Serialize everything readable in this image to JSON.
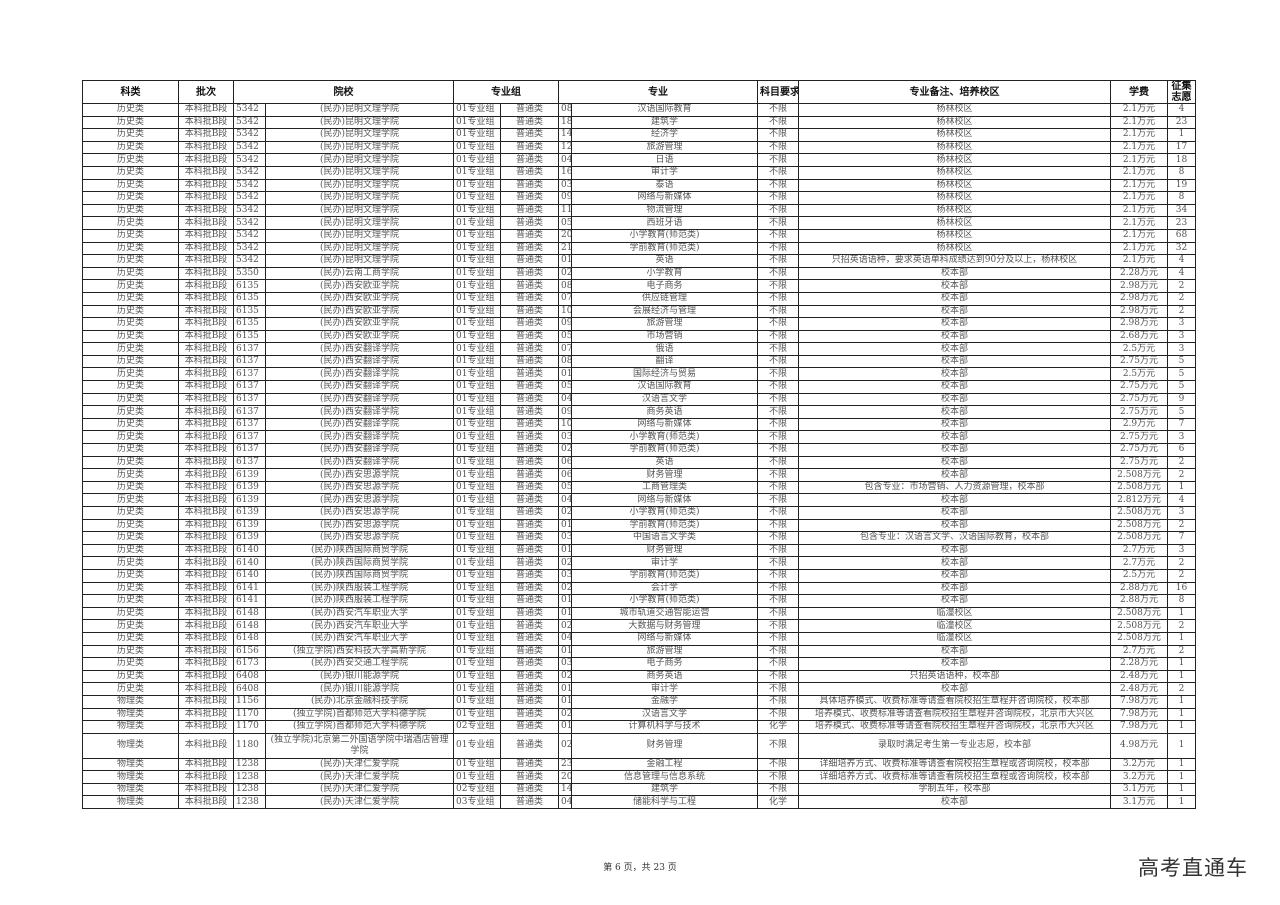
{
  "header": {
    "subject": "科类",
    "batch": "批次",
    "school": "院校",
    "group": "专业组",
    "major": "专业",
    "requirement": "科目要求",
    "note": "专业备注、培养校区",
    "fee": "学费",
    "volunteers": "征集志愿"
  },
  "rows": [
    [
      "历史类",
      "本科批B段",
      "5342",
      "(民办)昆明文理学院",
      "01专业组",
      "普通类",
      "08",
      "汉语国际教育",
      "不限",
      "杨林校区",
      "2.1万元",
      "4"
    ],
    [
      "历史类",
      "本科批B段",
      "5342",
      "(民办)昆明文理学院",
      "01专业组",
      "普通类",
      "18",
      "建筑学",
      "不限",
      "杨林校区",
      "2.1万元",
      "23"
    ],
    [
      "历史类",
      "本科批B段",
      "5342",
      "(民办)昆明文理学院",
      "01专业组",
      "普通类",
      "14",
      "经济学",
      "不限",
      "杨林校区",
      "2.1万元",
      "1"
    ],
    [
      "历史类",
      "本科批B段",
      "5342",
      "(民办)昆明文理学院",
      "01专业组",
      "普通类",
      "12",
      "旅游管理",
      "不限",
      "杨林校区",
      "2.1万元",
      "17"
    ],
    [
      "历史类",
      "本科批B段",
      "5342",
      "(民办)昆明文理学院",
      "01专业组",
      "普通类",
      "04",
      "日语",
      "不限",
      "杨林校区",
      "2.1万元",
      "18"
    ],
    [
      "历史类",
      "本科批B段",
      "5342",
      "(民办)昆明文理学院",
      "01专业组",
      "普通类",
      "16",
      "审计学",
      "不限",
      "杨林校区",
      "2.1万元",
      "8"
    ],
    [
      "历史类",
      "本科批B段",
      "5342",
      "(民办)昆明文理学院",
      "01专业组",
      "普通类",
      "03",
      "泰语",
      "不限",
      "杨林校区",
      "2.1万元",
      "19"
    ],
    [
      "历史类",
      "本科批B段",
      "5342",
      "(民办)昆明文理学院",
      "01专业组",
      "普通类",
      "09",
      "网络与新媒体",
      "不限",
      "杨林校区",
      "2.1万元",
      "8"
    ],
    [
      "历史类",
      "本科批B段",
      "5342",
      "(民办)昆明文理学院",
      "01专业组",
      "普通类",
      "11",
      "物流管理",
      "不限",
      "杨林校区",
      "2.1万元",
      "34"
    ],
    [
      "历史类",
      "本科批B段",
      "5342",
      "(民办)昆明文理学院",
      "01专业组",
      "普通类",
      "05",
      "西班牙语",
      "不限",
      "杨林校区",
      "2.1万元",
      "23"
    ],
    [
      "历史类",
      "本科批B段",
      "5342",
      "(民办)昆明文理学院",
      "01专业组",
      "普通类",
      "20",
      "小学教育(师范类)",
      "不限",
      "杨林校区",
      "2.1万元",
      "68"
    ],
    [
      "历史类",
      "本科批B段",
      "5342",
      "(民办)昆明文理学院",
      "01专业组",
      "普通类",
      "21",
      "学前教育(师范类)",
      "不限",
      "杨林校区",
      "2.1万元",
      "32"
    ],
    [
      "历史类",
      "本科批B段",
      "5342",
      "(民办)昆明文理学院",
      "01专业组",
      "普通类",
      "01",
      "英语",
      "不限",
      "只招英语语种，要求英语单科成绩达到90分及以上，杨林校区",
      "2.1万元",
      "4"
    ],
    [
      "历史类",
      "本科批B段",
      "5350",
      "(民办)云南工商学院",
      "01专业组",
      "普通类",
      "02",
      "小学教育",
      "不限",
      "校本部",
      "2.28万元",
      "4"
    ],
    [
      "历史类",
      "本科批B段",
      "6135",
      "(民办)西安欧亚学院",
      "01专业组",
      "普通类",
      "08",
      "电子商务",
      "不限",
      "校本部",
      "2.98万元",
      "2"
    ],
    [
      "历史类",
      "本科批B段",
      "6135",
      "(民办)西安欧亚学院",
      "01专业组",
      "普通类",
      "07",
      "供应链管理",
      "不限",
      "校本部",
      "2.98万元",
      "2"
    ],
    [
      "历史类",
      "本科批B段",
      "6135",
      "(民办)西安欧亚学院",
      "01专业组",
      "普通类",
      "10",
      "会展经济与管理",
      "不限",
      "校本部",
      "2.98万元",
      "2"
    ],
    [
      "历史类",
      "本科批B段",
      "6135",
      "(民办)西安欧亚学院",
      "01专业组",
      "普通类",
      "09",
      "旅游管理",
      "不限",
      "校本部",
      "2.98万元",
      "3"
    ],
    [
      "历史类",
      "本科批B段",
      "6135",
      "(民办)西安欧亚学院",
      "01专业组",
      "普通类",
      "05",
      "市场营销",
      "不限",
      "校本部",
      "2.68万元",
      "3"
    ],
    [
      "历史类",
      "本科批B段",
      "6137",
      "(民办)西安翻译学院",
      "01专业组",
      "普通类",
      "07",
      "俄语",
      "不限",
      "校本部",
      "2.5万元",
      "3"
    ],
    [
      "历史类",
      "本科批B段",
      "6137",
      "(民办)西安翻译学院",
      "01专业组",
      "普通类",
      "08",
      "翻译",
      "不限",
      "校本部",
      "2.75万元",
      "5"
    ],
    [
      "历史类",
      "本科批B段",
      "6137",
      "(民办)西安翻译学院",
      "01专业组",
      "普通类",
      "01",
      "国际经济与贸易",
      "不限",
      "校本部",
      "2.5万元",
      "5"
    ],
    [
      "历史类",
      "本科批B段",
      "6137",
      "(民办)西安翻译学院",
      "01专业组",
      "普通类",
      "05",
      "汉语国际教育",
      "不限",
      "校本部",
      "2.75万元",
      "5"
    ],
    [
      "历史类",
      "本科批B段",
      "6137",
      "(民办)西安翻译学院",
      "01专业组",
      "普通类",
      "04",
      "汉语言文学",
      "不限",
      "校本部",
      "2.75万元",
      "9"
    ],
    [
      "历史类",
      "本科批B段",
      "6137",
      "(民办)西安翻译学院",
      "01专业组",
      "普通类",
      "09",
      "商务英语",
      "不限",
      "校本部",
      "2.75万元",
      "5"
    ],
    [
      "历史类",
      "本科批B段",
      "6137",
      "(民办)西安翻译学院",
      "01专业组",
      "普通类",
      "10",
      "网络与新媒体",
      "不限",
      "校本部",
      "2.9万元",
      "7"
    ],
    [
      "历史类",
      "本科批B段",
      "6137",
      "(民办)西安翻译学院",
      "01专业组",
      "普通类",
      "03",
      "小学教育(师范类)",
      "不限",
      "校本部",
      "2.75万元",
      "3"
    ],
    [
      "历史类",
      "本科批B段",
      "6137",
      "(民办)西安翻译学院",
      "01专业组",
      "普通类",
      "02",
      "学前教育(师范类)",
      "不限",
      "校本部",
      "2.75万元",
      "6"
    ],
    [
      "历史类",
      "本科批B段",
      "6137",
      "(民办)西安翻译学院",
      "01专业组",
      "普通类",
      "06",
      "英语",
      "不限",
      "校本部",
      "2.75万元",
      "2"
    ],
    [
      "历史类",
      "本科批B段",
      "6139",
      "(民办)西安思源学院",
      "01专业组",
      "普通类",
      "06",
      "财务管理",
      "不限",
      "校本部",
      "2.508万元",
      "2"
    ],
    [
      "历史类",
      "本科批B段",
      "6139",
      "(民办)西安思源学院",
      "01专业组",
      "普通类",
      "05",
      "工商管理类",
      "不限",
      "包含专业：市场营销、人力资源管理，校本部",
      "2.508万元",
      "1"
    ],
    [
      "历史类",
      "本科批B段",
      "6139",
      "(民办)西安思源学院",
      "01专业组",
      "普通类",
      "04",
      "网络与新媒体",
      "不限",
      "校本部",
      "2.812万元",
      "4"
    ],
    [
      "历史类",
      "本科批B段",
      "6139",
      "(民办)西安思源学院",
      "01专业组",
      "普通类",
      "02",
      "小学教育(师范类)",
      "不限",
      "校本部",
      "2.508万元",
      "3"
    ],
    [
      "历史类",
      "本科批B段",
      "6139",
      "(民办)西安思源学院",
      "01专业组",
      "普通类",
      "01",
      "学前教育(师范类)",
      "不限",
      "校本部",
      "2.508万元",
      "2"
    ],
    [
      "历史类",
      "本科批B段",
      "6139",
      "(民办)西安思源学院",
      "01专业组",
      "普通类",
      "03",
      "中国语言文学类",
      "不限",
      "包含专业：汉语言文学、汉语国际教育，校本部",
      "2.508万元",
      "7"
    ],
    [
      "历史类",
      "本科批B段",
      "6140",
      "(民办)陕西国际商贸学院",
      "01专业组",
      "普通类",
      "01",
      "财务管理",
      "不限",
      "校本部",
      "2.7万元",
      "3"
    ],
    [
      "历史类",
      "本科批B段",
      "6140",
      "(民办)陕西国际商贸学院",
      "01专业组",
      "普通类",
      "02",
      "审计学",
      "不限",
      "校本部",
      "2.7万元",
      "2"
    ],
    [
      "历史类",
      "本科批B段",
      "6140",
      "(民办)陕西国际商贸学院",
      "01专业组",
      "普通类",
      "03",
      "学前教育(师范类)",
      "不限",
      "校本部",
      "2.5万元",
      "2"
    ],
    [
      "历史类",
      "本科批B段",
      "6141",
      "(民办)陕西服装工程学院",
      "01专业组",
      "普通类",
      "02",
      "会计学",
      "不限",
      "校本部",
      "2.88万元",
      "16"
    ],
    [
      "历史类",
      "本科批B段",
      "6141",
      "(民办)陕西服装工程学院",
      "01专业组",
      "普通类",
      "01",
      "小学教育(师范类)",
      "不限",
      "校本部",
      "2.88万元",
      "8"
    ],
    [
      "历史类",
      "本科批B段",
      "6148",
      "(民办)西安汽车职业大学",
      "01专业组",
      "普通类",
      "01",
      "城市轨道交通智能运营",
      "不限",
      "临潼校区",
      "2.508万元",
      "1"
    ],
    [
      "历史类",
      "本科批B段",
      "6148",
      "(民办)西安汽车职业大学",
      "01专业组",
      "普通类",
      "02",
      "大数据与财务管理",
      "不限",
      "临潼校区",
      "2.508万元",
      "2"
    ],
    [
      "历史类",
      "本科批B段",
      "6148",
      "(民办)西安汽车职业大学",
      "01专业组",
      "普通类",
      "04",
      "网络与新媒体",
      "不限",
      "临潼校区",
      "2.508万元",
      "1"
    ],
    [
      "历史类",
      "本科批B段",
      "6156",
      "(独立学院)西安科技大学高新学院",
      "01专业组",
      "普通类",
      "01",
      "旅游管理",
      "不限",
      "校本部",
      "2.7万元",
      "2"
    ],
    [
      "历史类",
      "本科批B段",
      "6173",
      "(民办)西安交通工程学院",
      "01专业组",
      "普通类",
      "03",
      "电子商务",
      "不限",
      "校本部",
      "2.28万元",
      "1"
    ],
    [
      "历史类",
      "本科批B段",
      "6408",
      "(民办)银川能源学院",
      "01专业组",
      "普通类",
      "02",
      "商务英语",
      "不限",
      "只招英语语种，校本部",
      "2.48万元",
      "1"
    ],
    [
      "历史类",
      "本科批B段",
      "6408",
      "(民办)银川能源学院",
      "01专业组",
      "普通类",
      "01",
      "审计学",
      "不限",
      "校本部",
      "2.48万元",
      "2"
    ],
    [
      "物理类",
      "本科批B段",
      "1156",
      "(民办)北京金融科技学院",
      "01专业组",
      "普通类",
      "01",
      "金融学",
      "不限",
      "具体培养模式、收费标准等请查看院校招生章程并咨询院校，校本部",
      "7.98万元",
      "1"
    ],
    [
      "物理类",
      "本科批B段",
      "1170",
      "(独立学院)首都师范大学科德学院",
      "01专业组",
      "普通类",
      "02",
      "汉语言文学",
      "不限",
      "培养模式、收费标准等请查看院校招生章程并咨询院校，北京市大兴区",
      "7.98万元",
      "1"
    ],
    [
      "物理类",
      "本科批B段",
      "1170",
      "(独立学院)首都师范大学科德学院",
      "02专业组",
      "普通类",
      "01",
      "计算机科学与技术",
      "化学",
      "培养模式、收费标准等请查看院校招生章程并咨询院校，北京市大兴区",
      "7.98万元",
      "1"
    ],
    [
      "物理类",
      "本科批B段",
      "1180",
      "(独立学院)北京第二外国语学院中瑞酒店管理学院",
      "01专业组",
      "普通类",
      "02",
      "财务管理",
      "不限",
      "录取时满足考生第一专业志愿，校本部",
      "4.98万元",
      "1"
    ],
    [
      "物理类",
      "本科批B段",
      "1238",
      "(民办)天津仁爱学院",
      "01专业组",
      "普通类",
      "23",
      "金融工程",
      "不限",
      "详细培养方式、收费标准等请查看院校招生章程或咨询院校，校本部",
      "3.2万元",
      "1"
    ],
    [
      "物理类",
      "本科批B段",
      "1238",
      "(民办)天津仁爱学院",
      "01专业组",
      "普通类",
      "20",
      "信息管理与信息系统",
      "不限",
      "详细培养方式、收费标准等请查看院校招生章程或咨询院校，校本部",
      "3.2万元",
      "1"
    ],
    [
      "物理类",
      "本科批B段",
      "1238",
      "(民办)天津仁爱学院",
      "02专业组",
      "普通类",
      "14",
      "建筑学",
      "不限",
      "学制五年，校本部",
      "3.1万元",
      "1"
    ],
    [
      "物理类",
      "本科批B段",
      "1238",
      "(民办)天津仁爱学院",
      "03专业组",
      "普通类",
      "04",
      "储能科学与工程",
      "化学",
      "校本部",
      "3.1万元",
      "1"
    ]
  ],
  "footer": {
    "page_text": "第 6 页，共 23 页"
  },
  "watermark": "高考直通车"
}
